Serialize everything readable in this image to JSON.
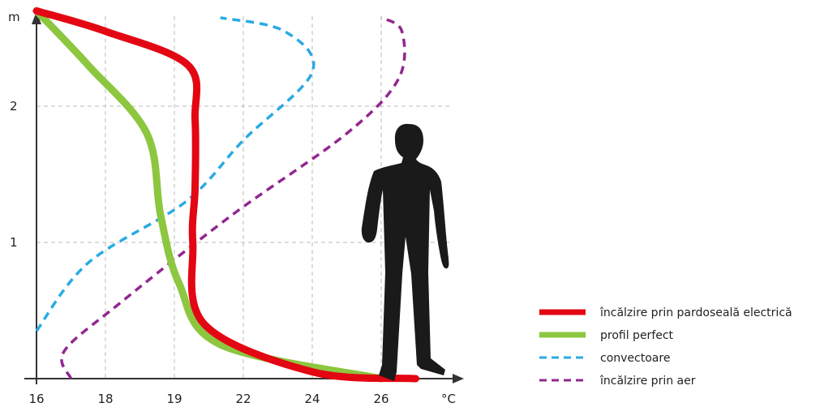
{
  "chart_data": {
    "type": "line",
    "xlabel": "°C",
    "ylabel": "m",
    "x_tick_labels": [
      "16",
      "18",
      "19",
      "22",
      "24",
      "26"
    ],
    "y_tick_labels": [
      "1",
      "2"
    ],
    "ylim": [
      0,
      2.7
    ],
    "grid": true,
    "legend_position": "bottom-right",
    "colors": {
      "electric_floor": "#e30613",
      "perfect": "#8dc63f",
      "convectors": "#29abe2",
      "air": "#92278f",
      "axis": "#333333",
      "grid": "#bbbbbb",
      "figure": "#1a1a1a"
    },
    "illustration": "person-silhouette",
    "series": [
      {
        "name": "încălzire prin pardoseală electrică",
        "key": "electric_floor",
        "style": "solid",
        "points": [
          {
            "x": 16.0,
            "y": 2.7
          },
          {
            "x": 18.0,
            "y": 2.55
          },
          {
            "x": 19.6,
            "y": 2.3
          },
          {
            "x": 19.9,
            "y": 1.9
          },
          {
            "x": 19.9,
            "y": 1.4
          },
          {
            "x": 19.8,
            "y": 1.0
          },
          {
            "x": 20.3,
            "y": 0.4
          },
          {
            "x": 24.0,
            "y": 0.05
          },
          {
            "x": 27.0,
            "y": 0.0
          }
        ]
      },
      {
        "name": "profil perfect",
        "key": "perfect",
        "style": "solid",
        "points": [
          {
            "x": 16.0,
            "y": 2.7
          },
          {
            "x": 17.5,
            "y": 2.3
          },
          {
            "x": 18.6,
            "y": 1.8
          },
          {
            "x": 18.8,
            "y": 1.2
          },
          {
            "x": 19.2,
            "y": 0.7
          },
          {
            "x": 21.0,
            "y": 0.25
          },
          {
            "x": 26.0,
            "y": 0.0
          }
        ]
      },
      {
        "name": "convectoare",
        "key": "convectors",
        "style": "dashed",
        "points": [
          {
            "x": 16.0,
            "y": 0.35
          },
          {
            "x": 17.5,
            "y": 0.85
          },
          {
            "x": 19.5,
            "y": 1.3
          },
          {
            "x": 22.0,
            "y": 1.75
          },
          {
            "x": 24.0,
            "y": 2.25
          },
          {
            "x": 23.2,
            "y": 2.55
          },
          {
            "x": 21.0,
            "y": 2.65
          }
        ]
      },
      {
        "name": "încălzire prin aer",
        "key": "air",
        "style": "dashed",
        "points": [
          {
            "x": 17.0,
            "y": 0.0
          },
          {
            "x": 16.8,
            "y": 0.2
          },
          {
            "x": 18.2,
            "y": 0.55
          },
          {
            "x": 21.5,
            "y": 1.2
          },
          {
            "x": 25.0,
            "y": 1.8
          },
          {
            "x": 26.5,
            "y": 2.2
          },
          {
            "x": 26.6,
            "y": 2.55
          },
          {
            "x": 26.0,
            "y": 2.65
          }
        ]
      }
    ]
  }
}
